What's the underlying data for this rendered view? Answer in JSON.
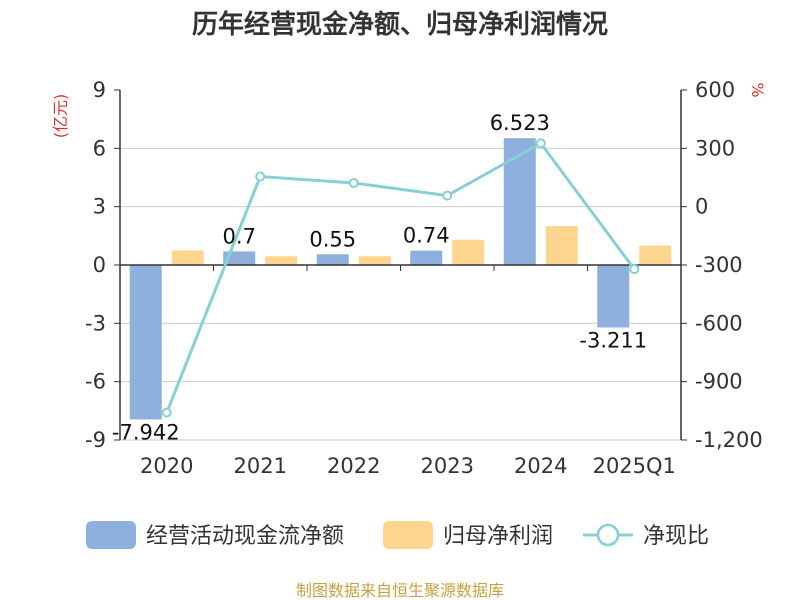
{
  "title": "历年经营现金净额、归母净利润情况",
  "left_axis_unit": "(亿元)",
  "right_axis_unit": "%",
  "source": "制图数据来自恒生聚源数据库",
  "colors": {
    "cash": "#8eb0dc",
    "profit": "#fdd58e",
    "ratio": "#86d0d6",
    "unit": "#e03030",
    "source": "#c8a040"
  },
  "chart_data": {
    "type": "bar",
    "categories": [
      "2020",
      "2021",
      "2022",
      "2023",
      "2024",
      "2025Q1"
    ],
    "series": [
      {
        "name": "经营活动现金流净额",
        "type": "bar",
        "axis": "left",
        "values": [
          -7.942,
          0.7,
          0.55,
          0.74,
          6.523,
          -3.211
        ],
        "labels": [
          "-7.942",
          "0.7",
          "0.55",
          "0.74",
          "6.523",
          "-3.211"
        ]
      },
      {
        "name": "归母净利润",
        "type": "bar",
        "axis": "left",
        "values": [
          0.75,
          0.45,
          0.45,
          1.3,
          2.0,
          1.0
        ]
      },
      {
        "name": "净现比",
        "type": "line",
        "axis": "right",
        "values": [
          -1059,
          155,
          122,
          57,
          326,
          -321
        ]
      }
    ],
    "left_axis": {
      "min": -9,
      "max": 9,
      "ticks": [
        "9",
        "6",
        "3",
        "0",
        "-3",
        "-6",
        "-9"
      ]
    },
    "right_axis": {
      "min": -1200,
      "max": 600,
      "ticks": [
        "600",
        "300",
        "0",
        "-300",
        "-600",
        "-900",
        "-1,200"
      ]
    },
    "legend_position": "bottom",
    "grid": true
  }
}
